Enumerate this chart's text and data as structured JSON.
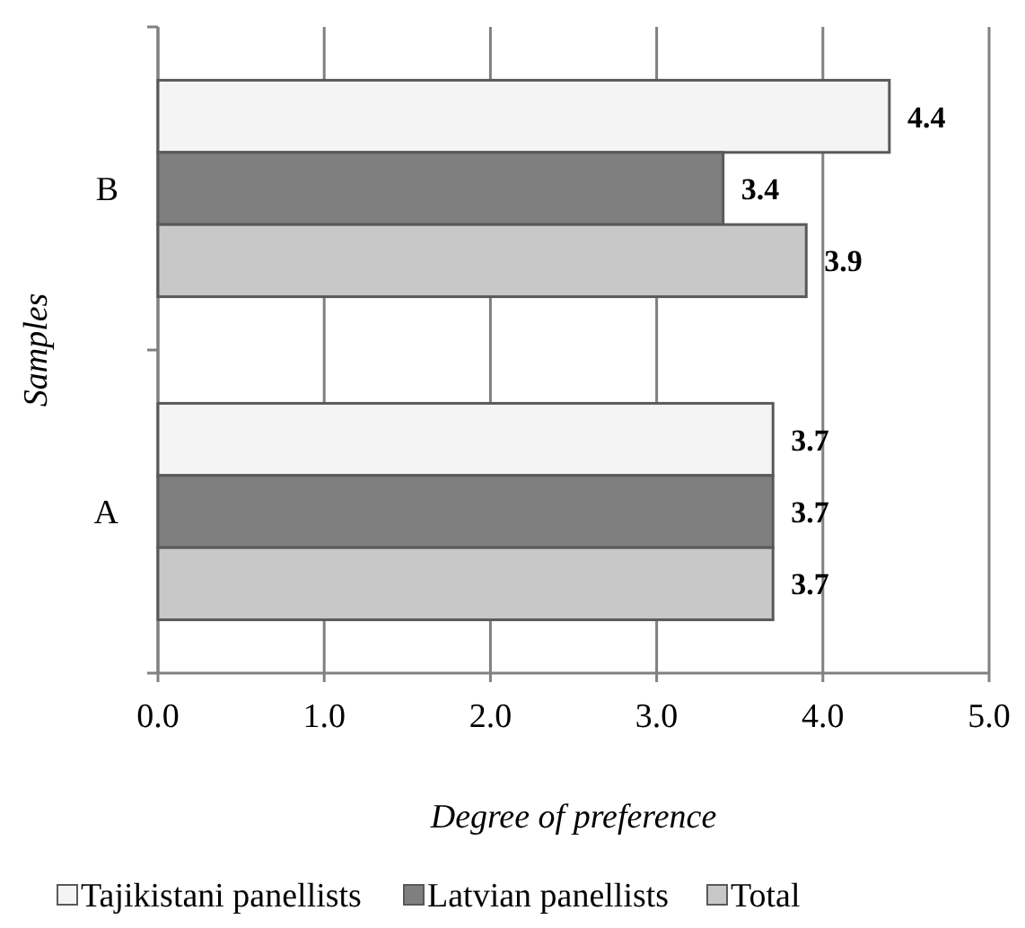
{
  "chart_data": {
    "type": "bar",
    "orientation": "horizontal",
    "xlabel": "Degree of preference",
    "ylabel": "Samples",
    "categories": [
      "B",
      "A"
    ],
    "series": [
      {
        "name": "Tajikistani panellists",
        "color": "#f4f4f4",
        "values": [
          4.4,
          3.7
        ]
      },
      {
        "name": "Latvian panellists",
        "color": "#7f7f7f",
        "values": [
          3.4,
          3.7
        ]
      },
      {
        "name": "Total",
        "color": "#c8c8c8",
        "values": [
          3.9,
          3.7
        ]
      }
    ],
    "xlim": [
      0,
      5
    ],
    "xticks": [
      {
        "value": 0,
        "label": "0.0"
      },
      {
        "value": 1,
        "label": "1.0"
      },
      {
        "value": 2,
        "label": "2.0"
      },
      {
        "value": 3,
        "label": "3.0"
      },
      {
        "value": 4,
        "label": "4.0"
      },
      {
        "value": 5,
        "label": "5.0"
      }
    ],
    "grid": "x",
    "legend": "bottom",
    "data_labels": true
  }
}
